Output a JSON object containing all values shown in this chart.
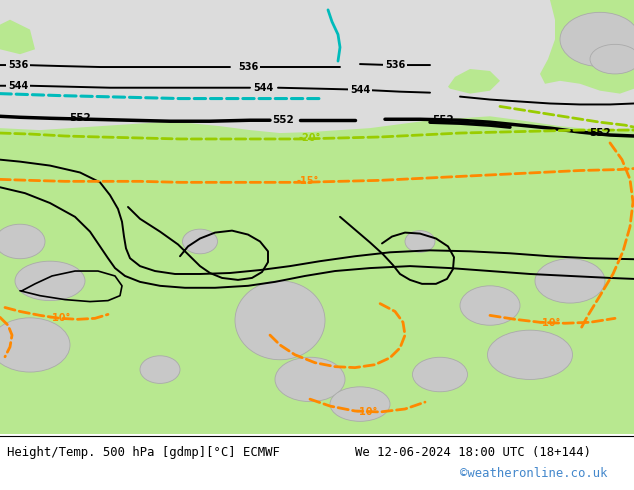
{
  "title_left": "Height/Temp. 500 hPa [gdmp][°C] ECMWF",
  "title_right": "We 12-06-2024 18:00 UTC (18+144)",
  "watermark": "©weatheronline.co.uk",
  "bg_gray": "#dcdcdc",
  "bg_green": "#b8e890",
  "bg_white": "#ffffff",
  "color_black": "#000000",
  "color_cyan": "#00bbbb",
  "color_yg": "#99cc00",
  "color_orange": "#ff8800",
  "color_gray_land": "#c8c8c8",
  "color_gray_land_edge": "#aaaaaa",
  "color_blue_link": "#4488cc",
  "fig_width": 6.34,
  "fig_height": 4.9,
  "dpi": 100
}
